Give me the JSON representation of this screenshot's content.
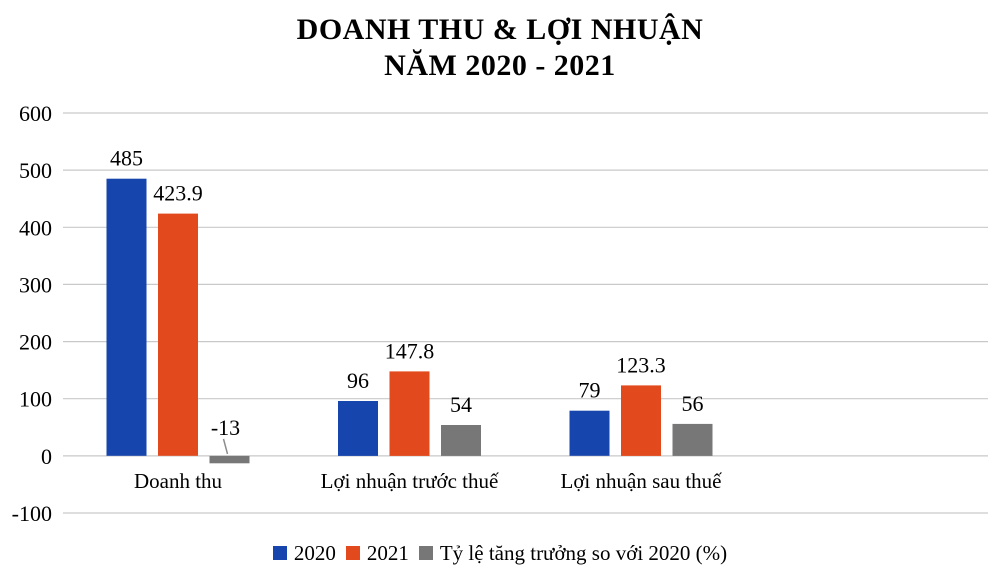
{
  "title": {
    "line1": "DOANH THU & LỢI NHUẬN",
    "line2": "NĂM 2020 - 2021"
  },
  "chart_data": {
    "type": "bar",
    "title": "DOANH THU & LỢI NHUẬN NĂM 2020 - 2021",
    "categories": [
      "Doanh thu",
      "Lợi nhuận trước thuế",
      "Lợi nhuận sau thuế"
    ],
    "series": [
      {
        "name": "2020",
        "color": "#1645AD",
        "values": [
          485,
          96,
          79
        ]
      },
      {
        "name": "2021",
        "color": "#E2491C",
        "values": [
          423.9,
          147.8,
          123.3
        ]
      },
      {
        "name": "Tỷ lệ tăng trưởng so với 2020 (%)",
        "color": "#777777",
        "values": [
          -13,
          54,
          56
        ]
      }
    ],
    "value_labels": [
      [
        "485",
        "96",
        "79"
      ],
      [
        "423.9",
        "147.8",
        "123.3"
      ],
      [
        "-13",
        "54",
        "56"
      ]
    ],
    "xlabel": "",
    "ylabel": "",
    "ylim": [
      -100,
      600
    ],
    "yticks": [
      600,
      500,
      400,
      300,
      200,
      100,
      0,
      -100
    ],
    "grid": true,
    "legend_position": "bottom",
    "colors": {
      "gridline": "#C9C9C9",
      "text": "#000000",
      "leader_line": "#8C8C8C"
    }
  }
}
